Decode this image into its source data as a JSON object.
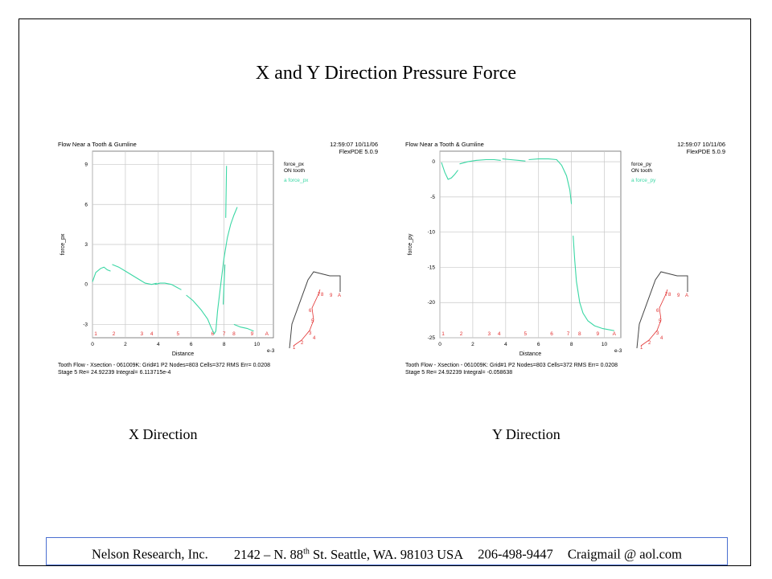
{
  "slide": {
    "title": "X and Y Direction Pressure Force",
    "captions": [
      "X Direction",
      "Y Direction"
    ]
  },
  "footer": {
    "company": "Nelson Research, Inc.",
    "address_pre": "2142 – N. 88",
    "address_sup": "th",
    "address_post": " St. Seattle, WA. 98103  USA",
    "phone": "206-498-9447",
    "email": "Craigmail @ aol.com"
  },
  "colors": {
    "curve": "#3ad7a4",
    "markers": "#e23030",
    "footer_border": "#4a6fd0",
    "grid": "#c8c8c8"
  },
  "chart_data": [
    {
      "type": "line",
      "title": "Flow Near a Tooth & Gumline",
      "timestamp": "12:59:07 10/11/06",
      "version": "FlexPDE 5.0.9",
      "legend_lines": [
        "force_px",
        "ON tooth"
      ],
      "legend_series": "a force_px",
      "xlabel": "Distance",
      "x_multiplier": "e-3",
      "ylabel": "force_px",
      "xlim": [
        0,
        11
      ],
      "ylim": [
        -4,
        10
      ],
      "xticks": [
        0,
        2,
        4,
        6,
        8,
        10
      ],
      "yticks": [
        -3,
        0,
        3,
        6,
        9
      ],
      "point_labels": [
        "1",
        "2",
        "3",
        "4",
        "5",
        "6",
        "7",
        "8",
        "9",
        "A"
      ],
      "point_label_x": [
        0.2,
        1.3,
        3.0,
        3.6,
        5.2,
        7.3,
        8.0,
        8.6,
        9.7,
        10.6
      ],
      "footer_lines": [
        "Tooth Flow - Xsection - 061009K:  Grid#1  P2  Nodes=803  Cells=372  RMS Err= 0.0208",
        "Stage 5  Re=  24.92239  Integral=  6.113715e-4"
      ],
      "series": [
        {
          "name": "force_px",
          "segments": [
            [
              [
                0,
                0.2
              ],
              [
                0.2,
                0.9
              ],
              [
                0.5,
                1.2
              ],
              [
                0.7,
                1.3
              ],
              [
                0.9,
                1.1
              ],
              [
                1.1,
                1.0
              ]
            ],
            [
              [
                1.2,
                1.5
              ],
              [
                1.6,
                1.3
              ],
              [
                2.0,
                1.0
              ],
              [
                2.4,
                0.7
              ],
              [
                2.8,
                0.4
              ],
              [
                3.2,
                0.1
              ],
              [
                3.6,
                0.0
              ],
              [
                3.9,
                0.1
              ]
            ],
            [
              [
                3.8,
                0.0
              ],
              [
                4.1,
                0.1
              ],
              [
                4.4,
                0.1
              ],
              [
                4.8,
                0.0
              ],
              [
                5.1,
                -0.2
              ],
              [
                5.4,
                -0.4
              ]
            ],
            [
              [
                5.7,
                -0.8
              ],
              [
                6.1,
                -1.2
              ],
              [
                6.6,
                -1.9
              ],
              [
                7.0,
                -2.6
              ],
              [
                7.2,
                -3.2
              ],
              [
                7.4,
                -3.7
              ],
              [
                7.5,
                -3.5
              ],
              [
                7.6,
                -2.0
              ],
              [
                7.8,
                0.0
              ],
              [
                8.0,
                2.0
              ],
              [
                8.2,
                3.5
              ],
              [
                8.4,
                4.5
              ],
              [
                8.6,
                5.2
              ],
              [
                8.8,
                5.8
              ]
            ],
            [
              [
                8.1,
                5.0
              ],
              [
                8.15,
                8.9
              ]
            ],
            [
              [
                7.95,
                -1.5
              ],
              [
                8.0,
                0.0
              ],
              [
                8.05,
                1.5
              ]
            ],
            [
              [
                8.6,
                -3.0
              ],
              [
                9.0,
                -3.2
              ],
              [
                9.4,
                -3.3
              ],
              [
                9.8,
                -3.5
              ]
            ]
          ]
        }
      ]
    },
    {
      "type": "line",
      "title": "Flow Near a Tooth & Gumline",
      "timestamp": "12:59:07 10/11/06",
      "version": "FlexPDE 5.0.9",
      "legend_lines": [
        "force_py",
        "ON tooth"
      ],
      "legend_series": "a force_py",
      "xlabel": "Distance",
      "x_multiplier": "e-3",
      "ylabel": "force_py",
      "xlim": [
        0,
        11
      ],
      "ylim": [
        -25,
        1.5
      ],
      "xticks": [
        0,
        2,
        4,
        6,
        8,
        10
      ],
      "yticks": [
        0,
        -5,
        -10,
        -15,
        -20,
        -25
      ],
      "point_labels": [
        "1",
        "2",
        "3",
        "4",
        "5",
        "6",
        "7",
        "8",
        "9",
        "A"
      ],
      "point_label_x": [
        0.2,
        1.3,
        3.0,
        3.6,
        5.2,
        6.8,
        7.8,
        8.5,
        9.6,
        10.6
      ],
      "footer_lines": [
        "Tooth Flow - Xsection - 061009K:  Grid#1  P2  Nodes=803  Cells=372  RMS Err= 0.0208",
        "Stage 5  Re=  24.92239  Integral= -0.058638"
      ],
      "series": [
        {
          "name": "force_py",
          "segments": [
            [
              [
                0.1,
                -0.1
              ],
              [
                0.3,
                -1.5
              ],
              [
                0.5,
                -2.5
              ],
              [
                0.7,
                -2.3
              ],
              [
                0.9,
                -1.8
              ],
              [
                1.1,
                -1.2
              ]
            ],
            [
              [
                1.2,
                -0.3
              ],
              [
                1.7,
                0.0
              ],
              [
                2.2,
                0.2
              ],
              [
                2.8,
                0.3
              ],
              [
                3.3,
                0.3
              ],
              [
                3.7,
                0.2
              ]
            ],
            [
              [
                3.8,
                0.4
              ],
              [
                4.3,
                0.3
              ],
              [
                4.8,
                0.2
              ],
              [
                5.2,
                0.1
              ]
            ],
            [
              [
                5.4,
                0.3
              ],
              [
                6.0,
                0.4
              ],
              [
                6.6,
                0.4
              ],
              [
                7.1,
                0.3
              ],
              [
                7.4,
                -0.5
              ],
              [
                7.7,
                -2.0
              ],
              [
                7.9,
                -4.0
              ],
              [
                8.0,
                -6.0
              ]
            ],
            [
              [
                8.1,
                -10.5
              ],
              [
                8.2,
                -14.0
              ],
              [
                8.3,
                -17.0
              ],
              [
                8.5,
                -20.0
              ],
              [
                8.7,
                -21.5
              ],
              [
                9.0,
                -22.6
              ],
              [
                9.4,
                -23.3
              ],
              [
                9.9,
                -23.7
              ],
              [
                10.6,
                -24.0
              ]
            ]
          ]
        }
      ]
    }
  ]
}
